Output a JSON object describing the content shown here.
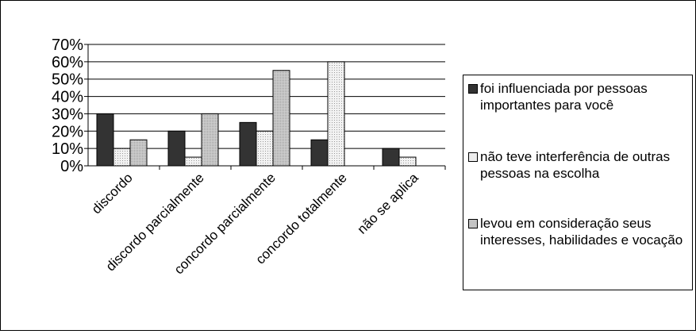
{
  "chart_data": {
    "type": "bar",
    "categories": [
      "discordo",
      "discordo parcialmente",
      "concordo parcialmente",
      "concordo totalmente",
      "não se aplica"
    ],
    "series": [
      {
        "name": "foi influenciada por pessoas importantes para você",
        "values": [
          30,
          20,
          25,
          15,
          10
        ],
        "color": "#333333"
      },
      {
        "name": "não teve interferência de outras pessoas na escolha",
        "values": [
          10,
          5,
          20,
          60,
          5
        ],
        "color": "#e6e6e6"
      },
      {
        "name": "levou em consideração seus interesses, habilidades e vocação",
        "values": [
          15,
          30,
          55,
          0,
          0
        ],
        "color": "#c0c0c0"
      }
    ],
    "ylim": [
      0,
      70
    ],
    "yticks": [
      "0%",
      "10%",
      "20%",
      "30%",
      "40%",
      "50%",
      "60%",
      "70%"
    ],
    "grid": true,
    "legend_position": "right",
    "title": "",
    "xlabel": "",
    "ylabel": ""
  }
}
